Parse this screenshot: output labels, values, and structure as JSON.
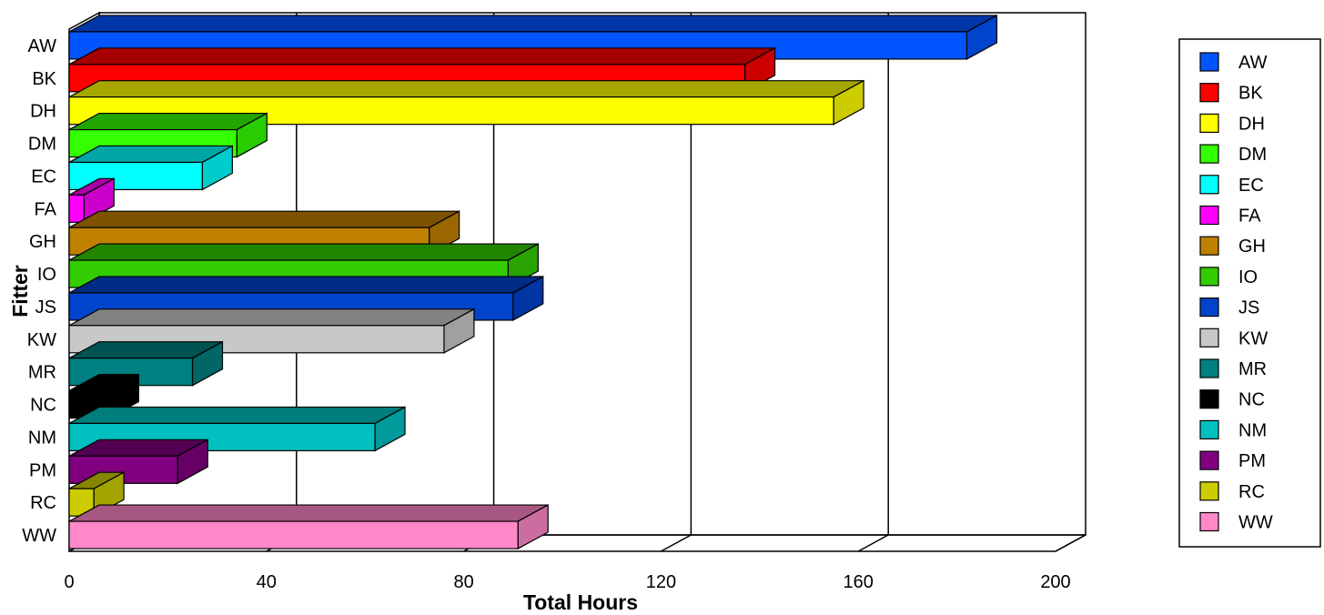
{
  "chart_data": {
    "type": "bar",
    "orientation": "horizontal",
    "three_d": true,
    "xlabel": "Total Hours",
    "ylabel": "Fitter",
    "xlim": [
      0,
      200
    ],
    "xticks": [
      "0",
      "40",
      "80",
      "120",
      "160",
      "200"
    ],
    "grid": true,
    "legend_position": "right",
    "categories": [
      "AW",
      "BK",
      "DH",
      "DM",
      "EC",
      "FA",
      "GH",
      "IO",
      "JS",
      "KW",
      "MR",
      "NC",
      "NM",
      "PM",
      "RC",
      "WW"
    ],
    "values": [
      182,
      137,
      155,
      34,
      27,
      3,
      73,
      89,
      90,
      76,
      25,
      8,
      62,
      22,
      5,
      91
    ],
    "colors": [
      "#0055FF",
      "#FF0000",
      "#FFFF00",
      "#33FF00",
      "#00FFFF",
      "#FF00FF",
      "#C08000",
      "#33CC00",
      "#0044CC",
      "#C8C8C8",
      "#008080",
      "#000000",
      "#00C0C0",
      "#800080",
      "#CCCC00",
      "#FF88C8"
    ]
  }
}
